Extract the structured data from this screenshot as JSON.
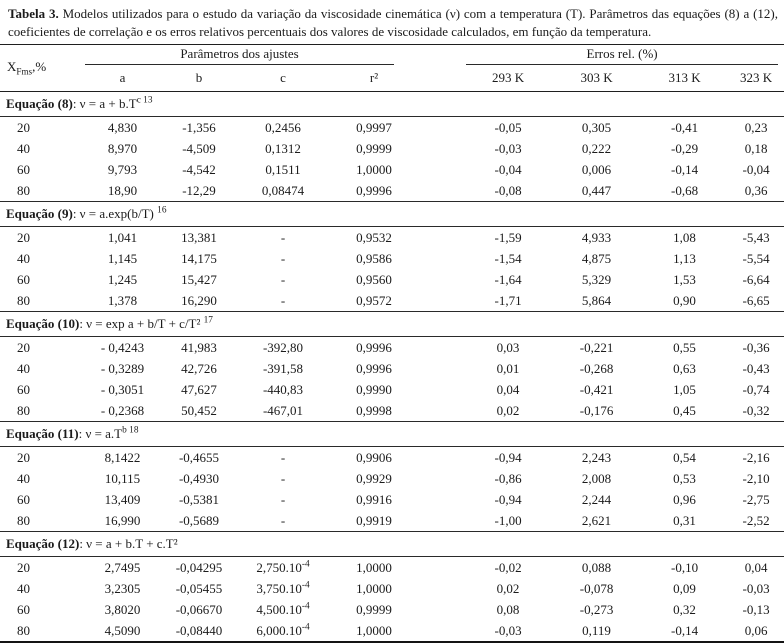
{
  "table": {
    "caption_label": "Tabela 3.",
    "caption_text": "Modelos utilizados para o estudo da variação da viscosidade cinemática (ν) com a temperatura (T). Parâmetros das equações (8) a (12), coeficientes de correlação e os erros relativos percentuais dos valores de viscosidade calculados, em função da temperatura.",
    "row_header": {
      "base": "X",
      "sub": "Fms",
      "suffix": ",%"
    },
    "groups": {
      "params": "Parâmetros dos ajustes",
      "errors": "Erros rel. (%)"
    },
    "param_columns": [
      "a",
      "b",
      "c",
      "r²"
    ],
    "error_columns": [
      "293 K",
      "303 K",
      "313 K",
      "323 K"
    ],
    "sections": [
      {
        "label": "Equação (8)",
        "eq": [
          {
            "t": ": ν = a + b.T"
          },
          {
            "t": "c 13",
            "sup": true
          }
        ],
        "rows": [
          {
            "x": "20",
            "params": [
              "4,830",
              "-1,356",
              "0,2456",
              "0,9997"
            ],
            "errors": [
              "-0,05",
              "0,305",
              "-0,41",
              "0,23"
            ]
          },
          {
            "x": "40",
            "params": [
              "8,970",
              "-4,509",
              "0,1312",
              "0,9999"
            ],
            "errors": [
              "-0,03",
              "0,222",
              "-0,29",
              "0,18"
            ]
          },
          {
            "x": "60",
            "params": [
              "9,793",
              "-4,542",
              "0,1511",
              "1,0000"
            ],
            "errors": [
              "-0,04",
              "0,006",
              "-0,14",
              "-0,04"
            ]
          },
          {
            "x": "80",
            "params": [
              "18,90",
              "-12,29",
              "0,08474",
              "0,9996"
            ],
            "errors": [
              "-0,08",
              "0,447",
              "-0,68",
              "0,36"
            ]
          }
        ]
      },
      {
        "label": "Equação (9)",
        "eq": [
          {
            "t": ": ν = a.exp(b/T) "
          },
          {
            "t": "16",
            "sup": true
          }
        ],
        "rows": [
          {
            "x": "20",
            "params": [
              "1,041",
              "13,381",
              "-",
              "0,9532"
            ],
            "errors": [
              "-1,59",
              "4,933",
              "1,08",
              "-5,43"
            ]
          },
          {
            "x": "40",
            "params": [
              "1,145",
              "14,175",
              "-",
              "0,9586"
            ],
            "errors": [
              "-1,54",
              "4,875",
              "1,13",
              "-5,54"
            ]
          },
          {
            "x": "60",
            "params": [
              "1,245",
              "15,427",
              "-",
              "0,9560"
            ],
            "errors": [
              "-1,64",
              "5,329",
              "1,53",
              "-6,64"
            ]
          },
          {
            "x": "80",
            "params": [
              "1,378",
              "16,290",
              "-",
              "0,9572"
            ],
            "errors": [
              "-1,71",
              "5,864",
              "0,90",
              "-6,65"
            ]
          }
        ]
      },
      {
        "label": "Equação (10)",
        "eq": [
          {
            "t": ": ν = exp a + b/T + c/T² "
          },
          {
            "t": "17",
            "sup": true
          }
        ],
        "rows": [
          {
            "x": "20",
            "params": [
              "- 0,4243",
              "41,983",
              "-392,80",
              "0,9996"
            ],
            "errors": [
              "0,03",
              "-0,221",
              "0,55",
              "-0,36"
            ]
          },
          {
            "x": "40",
            "params": [
              "- 0,3289",
              "42,726",
              "-391,58",
              "0,9996"
            ],
            "errors": [
              "0,01",
              "-0,268",
              "0,63",
              "-0,43"
            ]
          },
          {
            "x": "60",
            "params": [
              "- 0,3051",
              "47,627",
              "-440,83",
              "0,9990"
            ],
            "errors": [
              "0,04",
              "-0,421",
              "1,05",
              "-0,74"
            ]
          },
          {
            "x": "80",
            "params": [
              "- 0,2368",
              "50,452",
              "-467,01",
              "0,9998"
            ],
            "errors": [
              "0,02",
              "-0,176",
              "0,45",
              "-0,32"
            ]
          }
        ]
      },
      {
        "label": "Equação (11)",
        "eq": [
          {
            "t": ": ν = a.T"
          },
          {
            "t": "b 18",
            "sup": true
          }
        ],
        "rows": [
          {
            "x": "20",
            "params": [
              "8,1422",
              "-0,4655",
              "-",
              "0,9906"
            ],
            "errors": [
              "-0,94",
              "2,243",
              "0,54",
              "-2,16"
            ]
          },
          {
            "x": "40",
            "params": [
              "10,115",
              "-0,4930",
              "-",
              "0,9929"
            ],
            "errors": [
              "-0,86",
              "2,008",
              "0,53",
              "-2,10"
            ]
          },
          {
            "x": "60",
            "params": [
              "13,409",
              "-0,5381",
              "-",
              "0,9916"
            ],
            "errors": [
              "-0,94",
              "2,244",
              "0,96",
              "-2,75"
            ]
          },
          {
            "x": "80",
            "params": [
              "16,990",
              "-0,5689",
              "-",
              "0,9919"
            ],
            "errors": [
              "-1,00",
              "2,621",
              "0,31",
              "-2,52"
            ]
          }
        ]
      },
      {
        "label": "Equação (12)",
        "eq": [
          {
            "t": ": ν = a + b.T + c.T²"
          }
        ],
        "rows": [
          {
            "x": "20",
            "params": [
              "2,7495",
              "-0,04295",
              [
                {
                  "t": "2,750.10"
                },
                {
                  "t": "-4",
                  "sup": true
                }
              ],
              "1,0000"
            ],
            "errors": [
              "-0,02",
              "0,088",
              "-0,10",
              "0,04"
            ]
          },
          {
            "x": "40",
            "params": [
              "3,2305",
              "-0,05455",
              [
                {
                  "t": "3,750.10"
                },
                {
                  "t": "-4",
                  "sup": true
                }
              ],
              "1,0000"
            ],
            "errors": [
              "0,02",
              "-0,078",
              "0,09",
              "-0,03"
            ]
          },
          {
            "x": "60",
            "params": [
              "3,8020",
              "-0,06670",
              [
                {
                  "t": "4,500.10"
                },
                {
                  "t": "-4",
                  "sup": true
                }
              ],
              "0,9999"
            ],
            "errors": [
              "0,08",
              "-0,273",
              "0,32",
              "-0,13"
            ]
          },
          {
            "x": "80",
            "params": [
              "4,5090",
              "-0,08440",
              [
                {
                  "t": "6,000.10"
                },
                {
                  "t": "-4",
                  "sup": true
                }
              ],
              "1,0000"
            ],
            "errors": [
              "-0,03",
              "0,119",
              "-0,14",
              "0,06"
            ]
          }
        ]
      }
    ]
  }
}
